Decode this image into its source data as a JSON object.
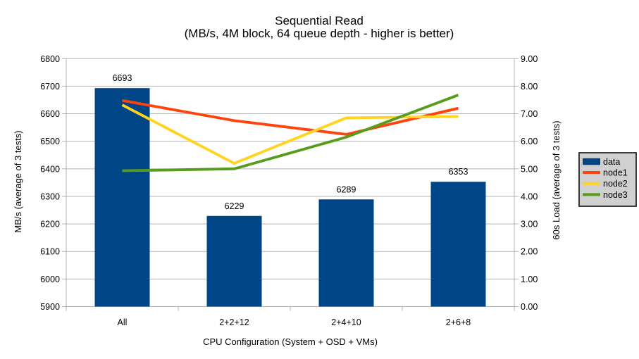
{
  "chart_data": {
    "type": "combo-bar-line",
    "title": "Sequential Read",
    "subtitle": "(MB/s, 4M block, 64 queue depth - higher is better)",
    "categories": [
      "All",
      "2+2+12",
      "2+4+10",
      "2+6+8"
    ],
    "bar_series": {
      "name": "data",
      "values": [
        6693,
        6229,
        6289,
        6353
      ],
      "color": "#004586",
      "axis": "left"
    },
    "line_series": [
      {
        "name": "node1",
        "values": [
          7.48,
          6.75,
          6.25,
          7.2
        ],
        "color": "#ff420e",
        "axis": "right"
      },
      {
        "name": "node2",
        "values": [
          7.32,
          5.2,
          6.85,
          6.9
        ],
        "color": "#ffd320",
        "axis": "right"
      },
      {
        "name": "node3",
        "values": [
          4.93,
          5.0,
          6.15,
          7.68
        ],
        "color": "#579d1c",
        "axis": "right"
      }
    ],
    "left_axis": {
      "label": "MB/s (average of 3 tests)",
      "min": 5900,
      "max": 6800,
      "step": 100,
      "decimals": 0
    },
    "right_axis": {
      "label": "60s Load (average of 3 tests)",
      "min": 0,
      "max": 9,
      "step": 1,
      "decimals": 2
    },
    "x_axis": {
      "label": "CPU Configuration (System + OSD + VMs)"
    },
    "legend": {
      "position": "right",
      "entries": [
        "data",
        "node1",
        "node2",
        "node3"
      ]
    },
    "grid": {
      "horizontal": true,
      "vertical": false
    },
    "colors": {
      "background": "#ffffff",
      "gridline": "#b3b3b3",
      "axis_line": "#b3b3b3",
      "text": "#000000",
      "legend_background": "#d0d0d0",
      "legend_border": "#262626"
    }
  }
}
